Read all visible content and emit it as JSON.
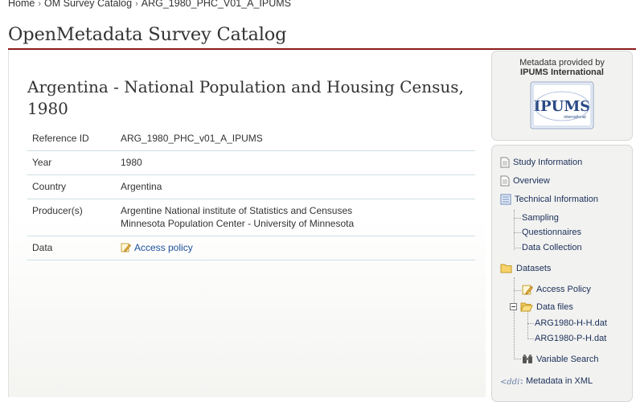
{
  "breadcrumb": [
    "Home",
    "OM Survey Catalog",
    "ARG_1980_PHC_V01_A_IPUMS"
  ],
  "breadcrumb_sep": "›",
  "site_title": "OpenMetadata Survey Catalog",
  "study_title": "Argentina - National Population and Housing Census, 1980",
  "info": {
    "reference_label": "Reference ID",
    "reference_value": "ARG_1980_PHC_v01_A_IPUMS",
    "year_label": "Year",
    "year_value": "1980",
    "country_label": "Country",
    "country_value": "Argentina",
    "producer_label": "Producer(s)",
    "producer_1": "Argentine National institute of Statistics and Censuses",
    "producer_2": "Minnesota Population Center - University of Minnesota",
    "data_label": "Data",
    "data_value": "Access policy"
  },
  "provider": {
    "line1": "Metadata provided by",
    "line2": "IPUMS International",
    "logo_text": "IPUMS",
    "logo_sub": "international"
  },
  "nav": {
    "study_information": "Study Information",
    "overview": "Overview",
    "technical_information": "Technical Information",
    "sampling": "Sampling",
    "questionnaires": "Questionnaires",
    "data_collection": "Data Collection",
    "datasets": "Datasets",
    "access_policy": "Access Policy",
    "data_files": "Data files",
    "file_1": "ARG1980-H-H.dat",
    "file_2": "ARG1980-P-H.dat",
    "variable_search": "Variable Search",
    "metadata_xml": "Metadata in XML"
  },
  "colors": {
    "accent_rule": "#8b1a1a",
    "link": "#1a4e9a",
    "nav_text": "#1a2f5a"
  }
}
